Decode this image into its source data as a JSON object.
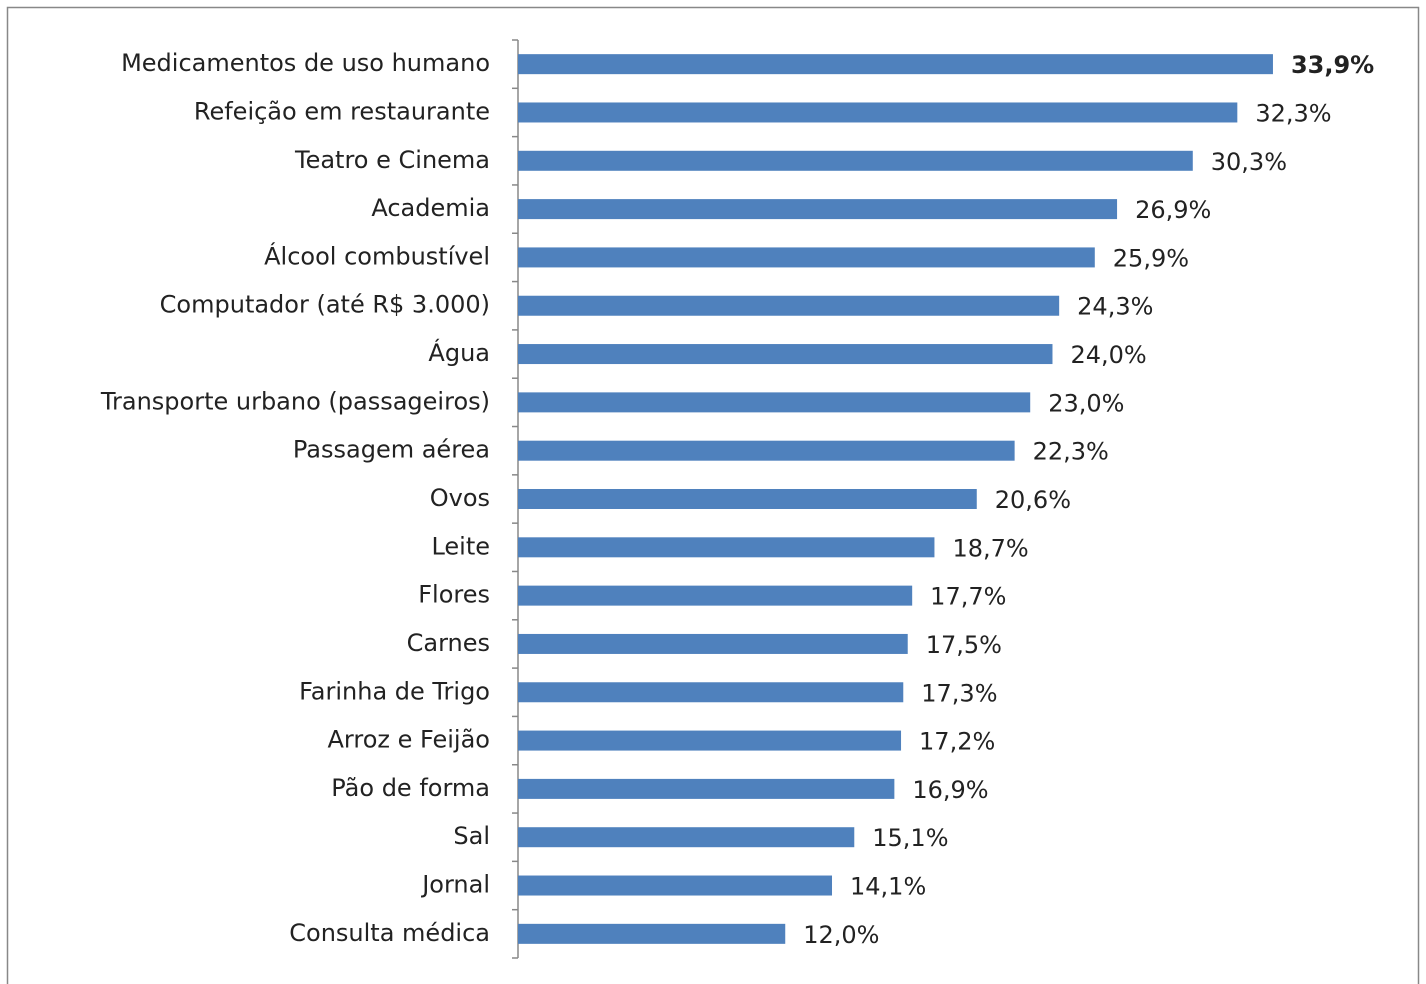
{
  "chart_data": {
    "type": "barh",
    "categories": [
      "Medicamentos de uso humano",
      "Refeição em restaurante",
      "Teatro e Cinema",
      "Academia",
      "Álcool combustível",
      "Computador (até R$ 3.000)",
      "Água",
      "Transporte urbano (passageiros)",
      "Passagem aérea",
      "Ovos",
      "Leite",
      "Flores",
      "Carnes",
      "Farinha de Trigo",
      "Arroz e Feijão",
      "Pão de forma",
      "Sal",
      "Jornal",
      "Consulta médica"
    ],
    "values": [
      33.9,
      32.3,
      30.3,
      26.9,
      25.9,
      24.3,
      24.0,
      23.0,
      22.3,
      20.6,
      18.7,
      17.7,
      17.5,
      17.3,
      17.2,
      16.9,
      15.1,
      14.1,
      12.0
    ],
    "value_labels": [
      "33,9%",
      "32,3%",
      "30,3%",
      "26,9%",
      "25,9%",
      "24,3%",
      "24,0%",
      "23,0%",
      "22,3%",
      "20,6%",
      "18,7%",
      "17,7%",
      "17,5%",
      "17,3%",
      "17,2%",
      "16,9%",
      "15,1%",
      "14,1%",
      "12,0%"
    ],
    "color": "#4f81bd",
    "xlim": [
      0,
      40
    ]
  }
}
